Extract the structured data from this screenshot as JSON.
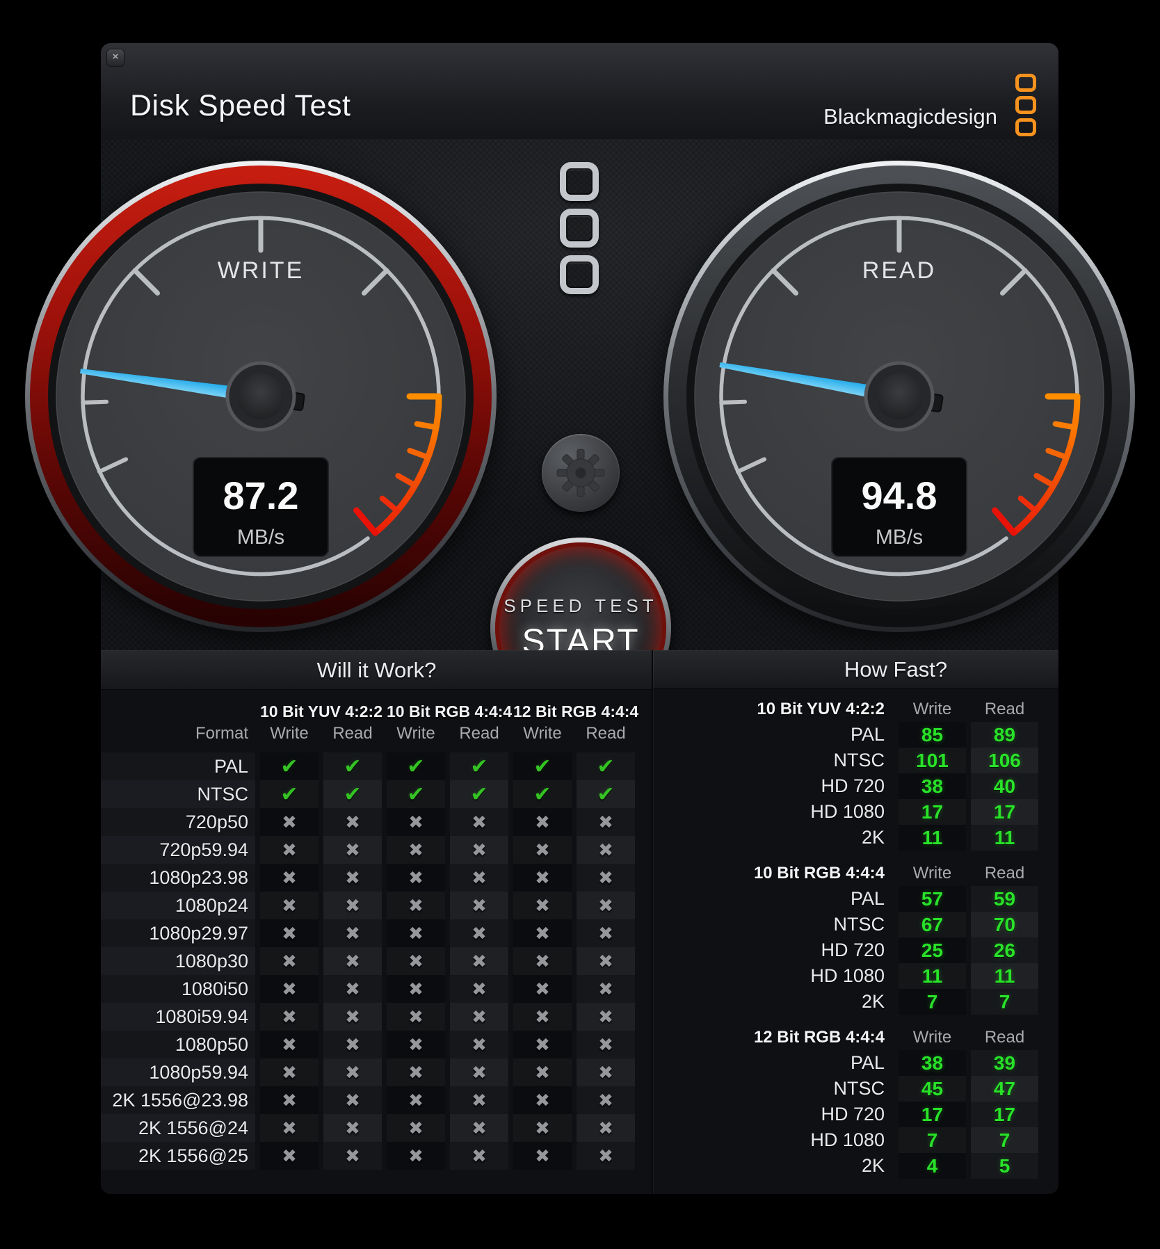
{
  "titlebar": {
    "title": "Disk Speed Test",
    "brand": "Blackmagicdesign",
    "close_glyph": "×"
  },
  "gauges": {
    "write": {
      "label": "WRITE",
      "value": "87.2",
      "unit": "MB/s"
    },
    "read": {
      "label": "READ",
      "value": "94.8",
      "unit": "MB/s"
    }
  },
  "center": {
    "speed_test_label": "SPEED TEST",
    "start_label": "START"
  },
  "will_it_work": {
    "title": "Will it Work?",
    "format_header": "Format",
    "groups": [
      "10 Bit YUV 4:2:2",
      "10 Bit RGB 4:4:4",
      "12 Bit RGB 4:4:4"
    ],
    "sub_headers": [
      "Write",
      "Read",
      "Write",
      "Read",
      "Write",
      "Read"
    ],
    "rows": [
      {
        "format": "PAL",
        "checks": [
          true,
          true,
          true,
          true,
          true,
          true
        ]
      },
      {
        "format": "NTSC",
        "checks": [
          true,
          true,
          true,
          true,
          true,
          true
        ]
      },
      {
        "format": "720p50",
        "checks": [
          false,
          false,
          false,
          false,
          false,
          false
        ]
      },
      {
        "format": "720p59.94",
        "checks": [
          false,
          false,
          false,
          false,
          false,
          false
        ]
      },
      {
        "format": "1080p23.98",
        "checks": [
          false,
          false,
          false,
          false,
          false,
          false
        ]
      },
      {
        "format": "1080p24",
        "checks": [
          false,
          false,
          false,
          false,
          false,
          false
        ]
      },
      {
        "format": "1080p29.97",
        "checks": [
          false,
          false,
          false,
          false,
          false,
          false
        ]
      },
      {
        "format": "1080p30",
        "checks": [
          false,
          false,
          false,
          false,
          false,
          false
        ]
      },
      {
        "format": "1080i50",
        "checks": [
          false,
          false,
          false,
          false,
          false,
          false
        ]
      },
      {
        "format": "1080i59.94",
        "checks": [
          false,
          false,
          false,
          false,
          false,
          false
        ]
      },
      {
        "format": "1080p50",
        "checks": [
          false,
          false,
          false,
          false,
          false,
          false
        ]
      },
      {
        "format": "1080p59.94",
        "checks": [
          false,
          false,
          false,
          false,
          false,
          false
        ]
      },
      {
        "format": "2K 1556@23.98",
        "checks": [
          false,
          false,
          false,
          false,
          false,
          false
        ]
      },
      {
        "format": "2K 1556@24",
        "checks": [
          false,
          false,
          false,
          false,
          false,
          false
        ]
      },
      {
        "format": "2K 1556@25",
        "checks": [
          false,
          false,
          false,
          false,
          false,
          false
        ]
      }
    ]
  },
  "how_fast": {
    "title": "How Fast?",
    "sections": [
      {
        "title": "10 Bit YUV 4:2:2",
        "write_header": "Write",
        "read_header": "Read",
        "rows": [
          {
            "format": "PAL",
            "write": 85,
            "read": 89
          },
          {
            "format": "NTSC",
            "write": 101,
            "read": 106
          },
          {
            "format": "HD 720",
            "write": 38,
            "read": 40
          },
          {
            "format": "HD 1080",
            "write": 17,
            "read": 17
          },
          {
            "format": "2K",
            "write": 11,
            "read": 11
          }
        ]
      },
      {
        "title": "10 Bit RGB 4:4:4",
        "write_header": "Write",
        "read_header": "Read",
        "rows": [
          {
            "format": "PAL",
            "write": 57,
            "read": 59
          },
          {
            "format": "NTSC",
            "write": 67,
            "read": 70
          },
          {
            "format": "HD 720",
            "write": 25,
            "read": 26
          },
          {
            "format": "HD 1080",
            "write": 11,
            "read": 11
          },
          {
            "format": "2K",
            "write": 7,
            "read": 7
          }
        ]
      },
      {
        "title": "12 Bit RGB 4:4:4",
        "write_header": "Write",
        "read_header": "Read",
        "rows": [
          {
            "format": "PAL",
            "write": 38,
            "read": 39
          },
          {
            "format": "NTSC",
            "write": 45,
            "read": 47
          },
          {
            "format": "HD 720",
            "write": 17,
            "read": 17
          },
          {
            "format": "HD 1080",
            "write": 7,
            "read": 7
          },
          {
            "format": "2K",
            "write": 4,
            "read": 5
          }
        ]
      }
    ]
  },
  "icons": {
    "check": "✔",
    "cross": "✖"
  },
  "colors": {
    "brand_orange": "#f6921e",
    "needle_blue": "#29b6f2",
    "check_green": "#35c224",
    "value_green": "#29e229",
    "hot_orange": "#ff8d00",
    "danger_red": "#e81208"
  }
}
